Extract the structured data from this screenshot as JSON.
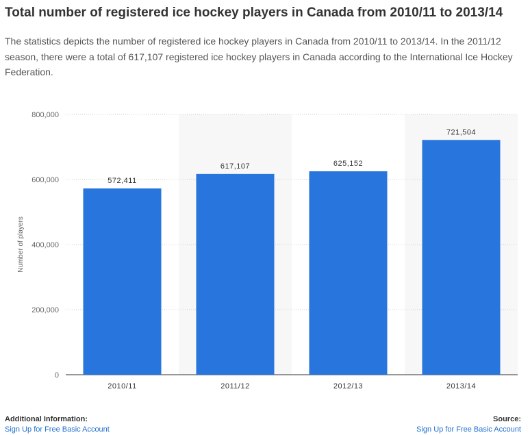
{
  "header": {
    "title": "Total number of registered ice hockey players in Canada from 2010/11 to 2013/14",
    "description": "The statistics depicts the number of registered ice hockey players in Canada from 2010/11 to 2013/14. In the 2011/12 season, there were a total of 617,107 registered ice hockey players in Canada according to the International Ice Hockey Federation."
  },
  "chart_data": {
    "type": "bar",
    "categories": [
      "2010/11",
      "2011/12",
      "2012/13",
      "2013/14"
    ],
    "values": [
      572411,
      617107,
      625152,
      721504
    ],
    "value_labels": [
      "572,411",
      "617,107",
      "625,152",
      "721,504"
    ],
    "ylabel": "Number of players",
    "ylim": [
      0,
      800000
    ],
    "yticks": [
      0,
      200000,
      400000,
      600000,
      800000
    ],
    "ytick_labels": [
      "0",
      "200,000",
      "400,000",
      "600,000",
      "800,000"
    ],
    "grid": true,
    "colors": {
      "bar": "#2876dd",
      "band": "#f7f7f7",
      "grid": "#cccccc"
    }
  },
  "footer": {
    "left_label": "Additional Information:",
    "left_link": "Sign Up for Free Basic Account",
    "right_label": "Source:",
    "right_link": "Sign Up for Free Basic Account"
  }
}
